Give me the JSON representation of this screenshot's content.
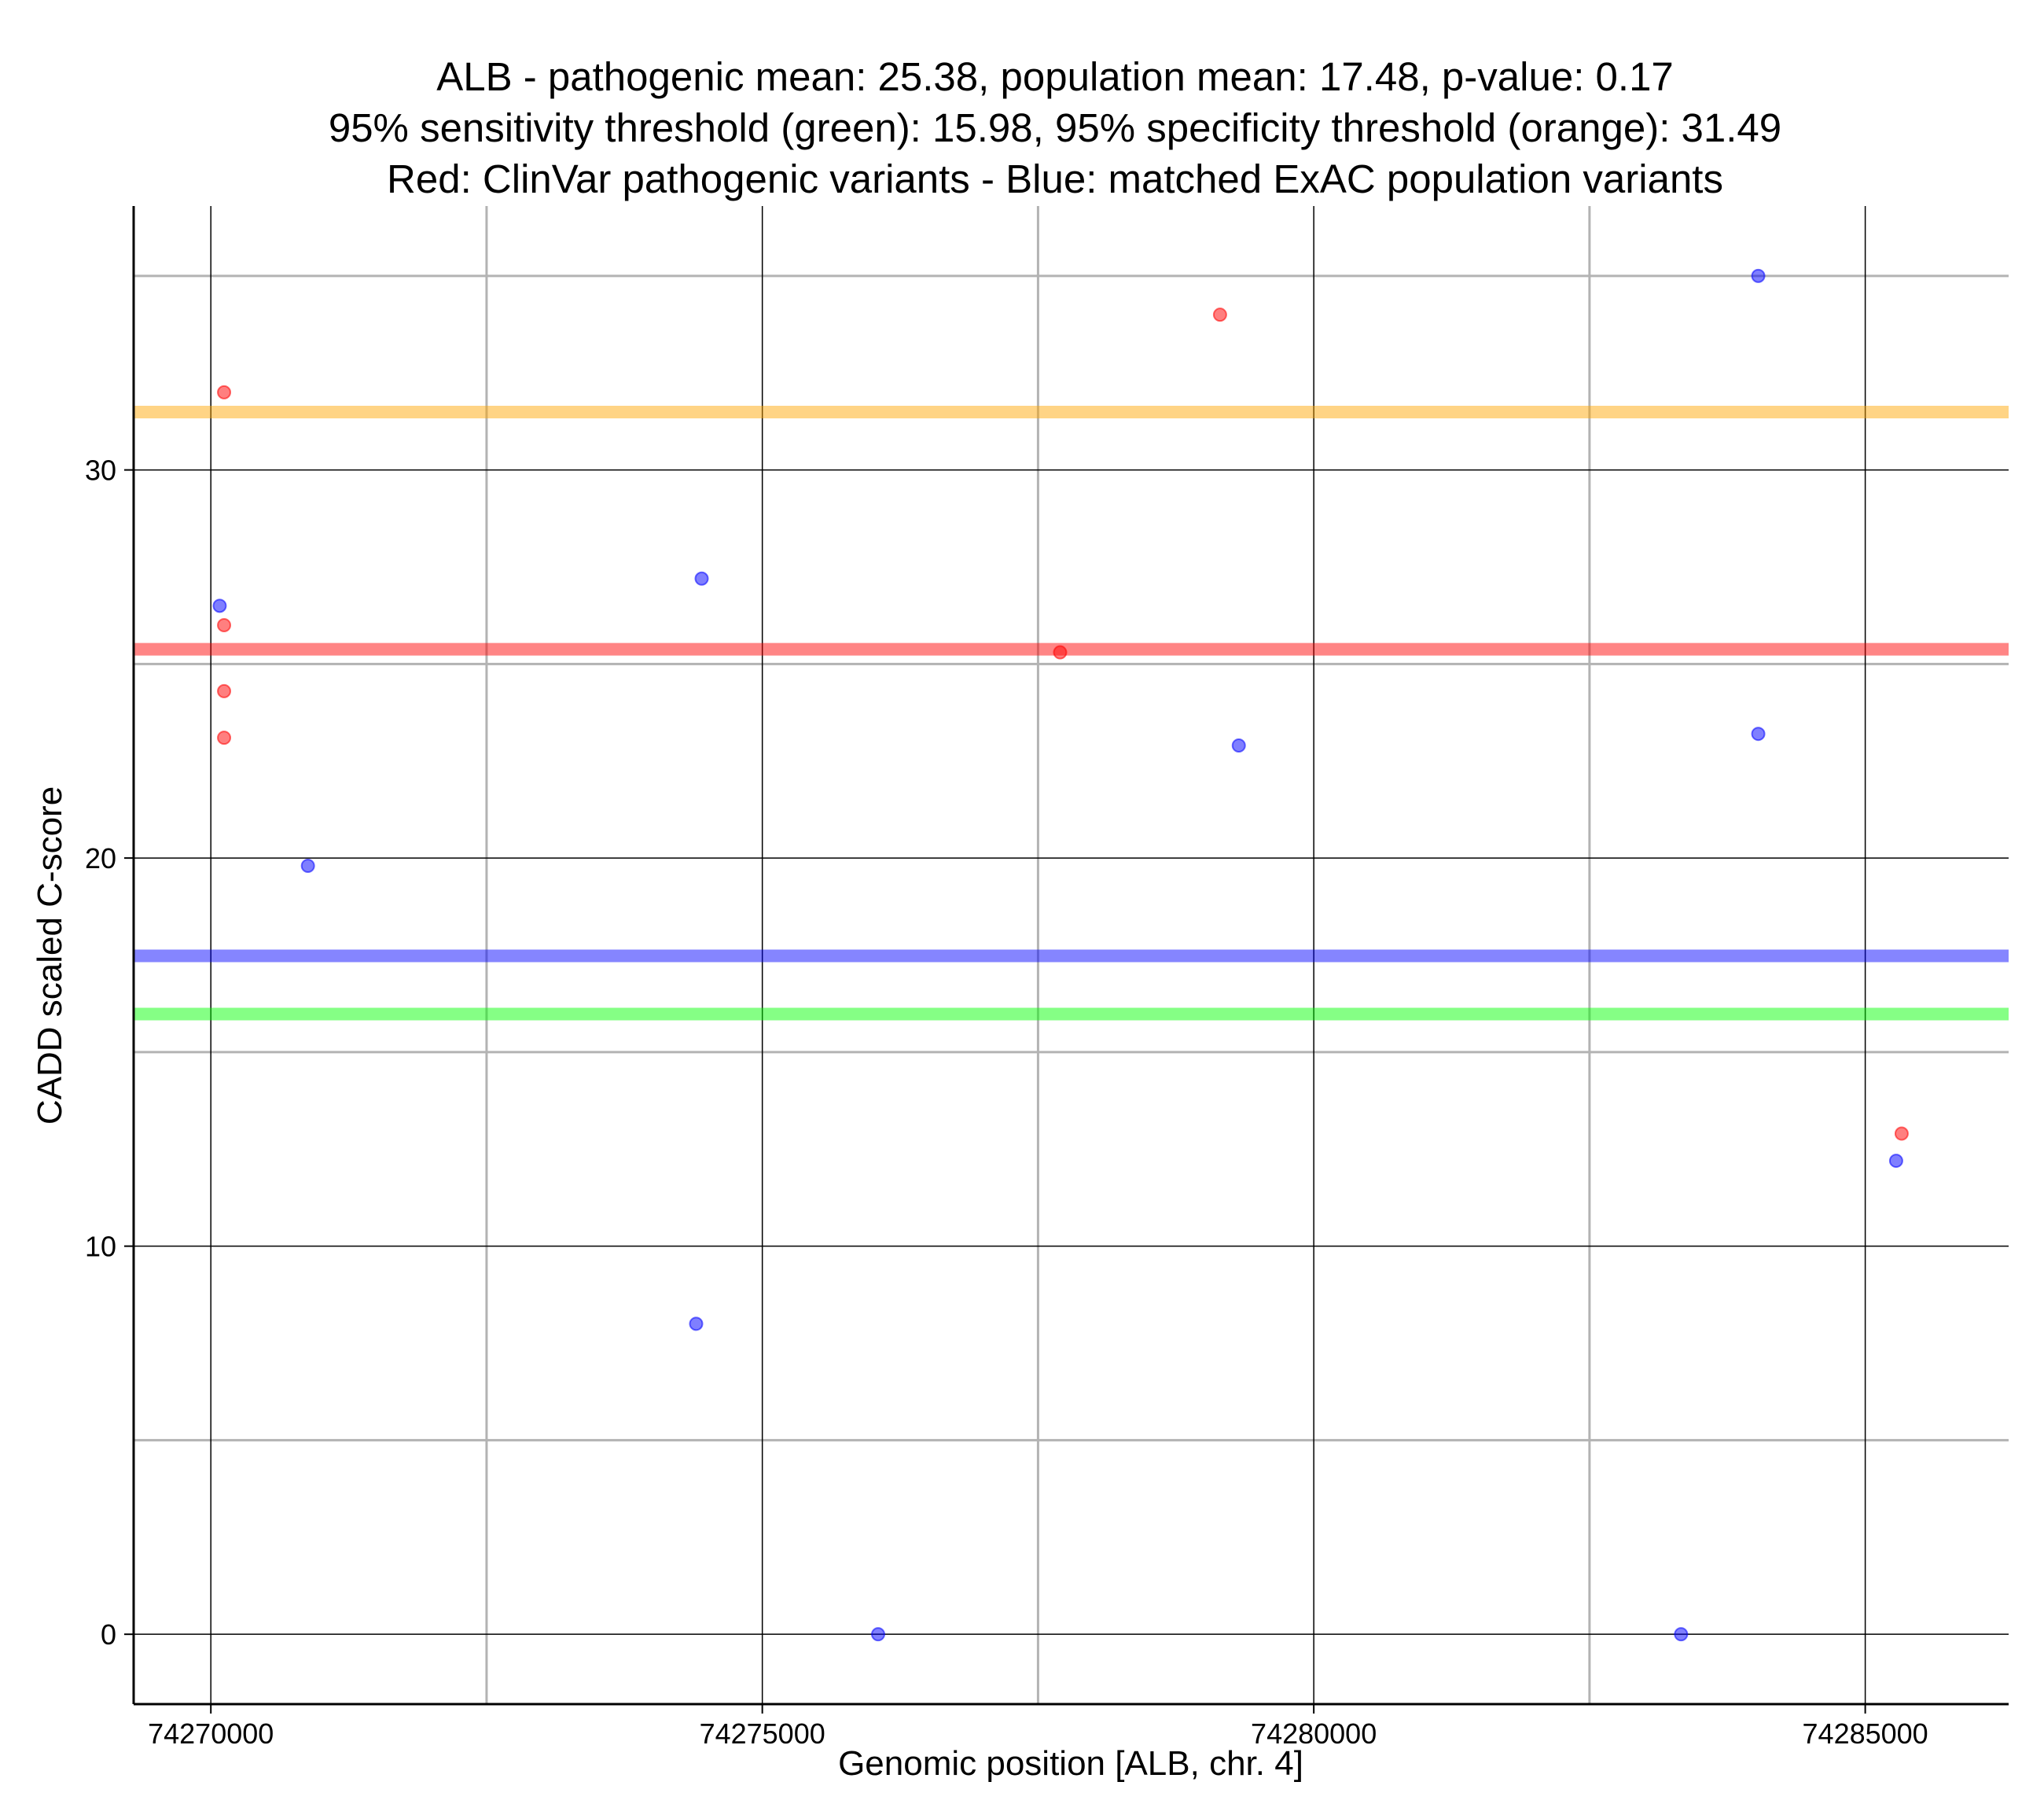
{
  "chart_data": {
    "type": "scatter",
    "title_lines": [
      "ALB - pathogenic mean: 25.38, population mean: 17.48, p-value: 0.17",
      "95% sensitivity threshold (green): 15.98, 95% specificity threshold (orange): 31.49",
      "Red: ClinVar pathogenic variants - Blue: matched ExAC population variants"
    ],
    "xlabel": "Genomic position [ALB, chr. 4]",
    "ylabel": "CADD scaled C-score",
    "xlim": [
      74269300,
      74286300
    ],
    "ylim": [
      -1.8,
      36.8
    ],
    "x_ticks": [
      74270000,
      74275000,
      74280000,
      74285000
    ],
    "x_tick_labels": [
      "74270000",
      "74275000",
      "74280000",
      "74285000"
    ],
    "x_minor_ticks": [
      74272500,
      74277500,
      74282500
    ],
    "y_ticks": [
      0,
      10,
      20,
      30
    ],
    "y_tick_labels": [
      "0",
      "10",
      "20",
      "30"
    ],
    "y_minor_ticks": [
      5,
      15,
      25,
      35
    ],
    "grid": true,
    "reference_lines": [
      {
        "name": "95% specificity threshold",
        "value": 31.49,
        "color": "#FFA500"
      },
      {
        "name": "pathogenic mean",
        "value": 25.38,
        "color": "#FF0000"
      },
      {
        "name": "population mean",
        "value": 17.48,
        "color": "#0000FF"
      },
      {
        "name": "95% sensitivity threshold",
        "value": 15.98,
        "color": "#00FF00"
      }
    ],
    "series": [
      {
        "name": "ClinVar pathogenic variants",
        "color": "#FF0000",
        "points": [
          {
            "x": 74270120,
            "y": 32.0
          },
          {
            "x": 74270120,
            "y": 26.0
          },
          {
            "x": 74270120,
            "y": 24.3
          },
          {
            "x": 74270120,
            "y": 23.1
          },
          {
            "x": 74277700,
            "y": 25.3
          },
          {
            "x": 74279150,
            "y": 34.0
          },
          {
            "x": 74285330,
            "y": 12.9
          }
        ]
      },
      {
        "name": "matched ExAC population variants",
        "color": "#0000FF",
        "points": [
          {
            "x": 74270080,
            "y": 26.5
          },
          {
            "x": 74270880,
            "y": 19.8
          },
          {
            "x": 74274450,
            "y": 27.2
          },
          {
            "x": 74274400,
            "y": 8.0
          },
          {
            "x": 74276050,
            "y": 0.0
          },
          {
            "x": 74279320,
            "y": 22.9
          },
          {
            "x": 74283330,
            "y": 0.0
          },
          {
            "x": 74284030,
            "y": 35.0
          },
          {
            "x": 74284030,
            "y": 23.2
          },
          {
            "x": 74285280,
            "y": 12.2
          }
        ]
      }
    ]
  }
}
